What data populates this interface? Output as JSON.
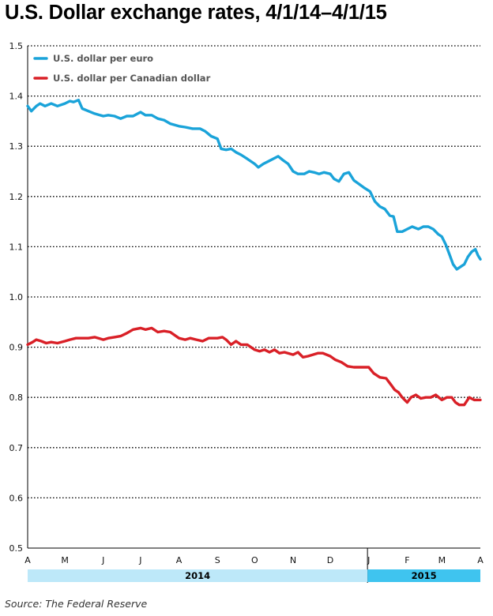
{
  "chart_data": {
    "type": "line",
    "title": "U.S. Dollar exchange rates, 4/1/14–4/1/15",
    "xlabel": "",
    "ylabel": "",
    "ylim": [
      0.5,
      1.5
    ],
    "y_ticks": [
      "0.5",
      "0.6",
      "0.7",
      "0.8",
      "0.9",
      "1.0",
      "1.1",
      "1.2",
      "1.3",
      "1.4",
      "1.5"
    ],
    "x_range": [
      "2014-04-01",
      "2015-04-01"
    ],
    "month_ticks": [
      {
        "label": "A",
        "date": "2014-04-01"
      },
      {
        "label": "M",
        "date": "2014-05-01"
      },
      {
        "label": "J",
        "date": "2014-06-01"
      },
      {
        "label": "J",
        "date": "2014-07-01"
      },
      {
        "label": "A",
        "date": "2014-08-01"
      },
      {
        "label": "S",
        "date": "2014-09-01"
      },
      {
        "label": "O",
        "date": "2014-10-01"
      },
      {
        "label": "N",
        "date": "2014-11-01"
      },
      {
        "label": "D",
        "date": "2014-12-01"
      },
      {
        "label": "J",
        "date": "2015-01-01"
      },
      {
        "label": "F",
        "date": "2015-02-01"
      },
      {
        "label": "M",
        "date": "2015-03-01"
      },
      {
        "label": "A",
        "date": "2015-04-01"
      }
    ],
    "years": [
      {
        "label": "2014",
        "start": "2014-04-01",
        "end": "2014-12-31"
      },
      {
        "label": "2015",
        "start": "2014-12-31",
        "end": "2015-04-01"
      }
    ],
    "grid": "horizontal dotted",
    "legend_position": "top-left",
    "series": [
      {
        "name": "U.S. dollar per euro",
        "color": "#1aa3d9",
        "points": [
          [
            "2014-04-01",
            1.38
          ],
          [
            "2014-04-04",
            1.37
          ],
          [
            "2014-04-08",
            1.38
          ],
          [
            "2014-04-11",
            1.385
          ],
          [
            "2014-04-15",
            1.38
          ],
          [
            "2014-04-20",
            1.385
          ],
          [
            "2014-04-25",
            1.38
          ],
          [
            "2014-05-01",
            1.385
          ],
          [
            "2014-05-05",
            1.39
          ],
          [
            "2014-05-08",
            1.388
          ],
          [
            "2014-05-12",
            1.392
          ],
          [
            "2014-05-15",
            1.375
          ],
          [
            "2014-05-20",
            1.37
          ],
          [
            "2014-05-25",
            1.365
          ],
          [
            "2014-06-01",
            1.36
          ],
          [
            "2014-06-05",
            1.362
          ],
          [
            "2014-06-10",
            1.36
          ],
          [
            "2014-06-15",
            1.355
          ],
          [
            "2014-06-20",
            1.36
          ],
          [
            "2014-06-25",
            1.36
          ],
          [
            "2014-07-01",
            1.368
          ],
          [
            "2014-07-05",
            1.362
          ],
          [
            "2014-07-10",
            1.362
          ],
          [
            "2014-07-15",
            1.355
          ],
          [
            "2014-07-20",
            1.352
          ],
          [
            "2014-07-25",
            1.345
          ],
          [
            "2014-08-01",
            1.34
          ],
          [
            "2014-08-06",
            1.338
          ],
          [
            "2014-08-12",
            1.335
          ],
          [
            "2014-08-18",
            1.335
          ],
          [
            "2014-08-22",
            1.33
          ],
          [
            "2014-08-27",
            1.32
          ],
          [
            "2014-09-01",
            1.315
          ],
          [
            "2014-09-04",
            1.295
          ],
          [
            "2014-09-08",
            1.293
          ],
          [
            "2014-09-12",
            1.295
          ],
          [
            "2014-09-16",
            1.288
          ],
          [
            "2014-09-20",
            1.283
          ],
          [
            "2014-09-25",
            1.275
          ],
          [
            "2014-10-01",
            1.265
          ],
          [
            "2014-10-04",
            1.258
          ],
          [
            "2014-10-08",
            1.265
          ],
          [
            "2014-10-12",
            1.27
          ],
          [
            "2014-10-16",
            1.275
          ],
          [
            "2014-10-20",
            1.28
          ],
          [
            "2014-10-24",
            1.272
          ],
          [
            "2014-10-28",
            1.265
          ],
          [
            "2014-11-01",
            1.25
          ],
          [
            "2014-11-05",
            1.245
          ],
          [
            "2014-11-10",
            1.245
          ],
          [
            "2014-11-14",
            1.25
          ],
          [
            "2014-11-18",
            1.248
          ],
          [
            "2014-11-22",
            1.245
          ],
          [
            "2014-11-26",
            1.248
          ],
          [
            "2014-12-01",
            1.245
          ],
          [
            "2014-12-04",
            1.235
          ],
          [
            "2014-12-08",
            1.23
          ],
          [
            "2014-12-12",
            1.245
          ],
          [
            "2014-12-16",
            1.248
          ],
          [
            "2014-12-20",
            1.232
          ],
          [
            "2014-12-24",
            1.225
          ],
          [
            "2014-12-28",
            1.218
          ],
          [
            "2015-01-02",
            1.21
          ],
          [
            "2015-01-06",
            1.19
          ],
          [
            "2015-01-10",
            1.18
          ],
          [
            "2015-01-14",
            1.175
          ],
          [
            "2015-01-18",
            1.162
          ],
          [
            "2015-01-21",
            1.16
          ],
          [
            "2015-01-24",
            1.13
          ],
          [
            "2015-01-28",
            1.13
          ],
          [
            "2015-02-01",
            1.135
          ],
          [
            "2015-02-05",
            1.14
          ],
          [
            "2015-02-10",
            1.135
          ],
          [
            "2015-02-14",
            1.14
          ],
          [
            "2015-02-18",
            1.14
          ],
          [
            "2015-02-22",
            1.135
          ],
          [
            "2015-02-26",
            1.125
          ],
          [
            "2015-03-01",
            1.12
          ],
          [
            "2015-03-04",
            1.105
          ],
          [
            "2015-03-07",
            1.085
          ],
          [
            "2015-03-10",
            1.065
          ],
          [
            "2015-03-13",
            1.055
          ],
          [
            "2015-03-16",
            1.06
          ],
          [
            "2015-03-19",
            1.065
          ],
          [
            "2015-03-22",
            1.08
          ],
          [
            "2015-03-25",
            1.09
          ],
          [
            "2015-03-28",
            1.095
          ],
          [
            "2015-03-30",
            1.083
          ],
          [
            "2015-04-01",
            1.075
          ]
        ]
      },
      {
        "name": "U.S. dollar per Canadian dollar",
        "color": "#d92027",
        "points": [
          [
            "2014-04-01",
            0.905
          ],
          [
            "2014-04-05",
            0.91
          ],
          [
            "2014-04-08",
            0.915
          ],
          [
            "2014-04-12",
            0.912
          ],
          [
            "2014-04-16",
            0.908
          ],
          [
            "2014-04-20",
            0.91
          ],
          [
            "2014-04-25",
            0.908
          ],
          [
            "2014-05-01",
            0.912
          ],
          [
            "2014-05-05",
            0.915
          ],
          [
            "2014-05-10",
            0.918
          ],
          [
            "2014-05-15",
            0.918
          ],
          [
            "2014-05-20",
            0.918
          ],
          [
            "2014-05-25",
            0.92
          ],
          [
            "2014-06-01",
            0.915
          ],
          [
            "2014-06-05",
            0.918
          ],
          [
            "2014-06-10",
            0.92
          ],
          [
            "2014-06-15",
            0.922
          ],
          [
            "2014-06-20",
            0.928
          ],
          [
            "2014-06-25",
            0.935
          ],
          [
            "2014-07-01",
            0.938
          ],
          [
            "2014-07-05",
            0.935
          ],
          [
            "2014-07-10",
            0.938
          ],
          [
            "2014-07-15",
            0.93
          ],
          [
            "2014-07-20",
            0.932
          ],
          [
            "2014-07-25",
            0.93
          ],
          [
            "2014-08-01",
            0.918
          ],
          [
            "2014-08-06",
            0.915
          ],
          [
            "2014-08-10",
            0.918
          ],
          [
            "2014-08-15",
            0.915
          ],
          [
            "2014-08-20",
            0.912
          ],
          [
            "2014-08-25",
            0.918
          ],
          [
            "2014-09-01",
            0.918
          ],
          [
            "2014-09-05",
            0.92
          ],
          [
            "2014-09-08",
            0.915
          ],
          [
            "2014-09-12",
            0.905
          ],
          [
            "2014-09-16",
            0.912
          ],
          [
            "2014-09-20",
            0.905
          ],
          [
            "2014-09-25",
            0.905
          ],
          [
            "2014-10-01",
            0.895
          ],
          [
            "2014-10-05",
            0.892
          ],
          [
            "2014-10-09",
            0.895
          ],
          [
            "2014-10-13",
            0.89
          ],
          [
            "2014-10-17",
            0.895
          ],
          [
            "2014-10-21",
            0.888
          ],
          [
            "2014-10-25",
            0.89
          ],
          [
            "2014-11-01",
            0.885
          ],
          [
            "2014-11-05",
            0.89
          ],
          [
            "2014-11-09",
            0.88
          ],
          [
            "2014-11-13",
            0.882
          ],
          [
            "2014-11-17",
            0.885
          ],
          [
            "2014-11-21",
            0.888
          ],
          [
            "2014-11-25",
            0.888
          ],
          [
            "2014-12-01",
            0.882
          ],
          [
            "2014-12-05",
            0.875
          ],
          [
            "2014-12-10",
            0.87
          ],
          [
            "2014-12-15",
            0.862
          ],
          [
            "2014-12-20",
            0.86
          ],
          [
            "2014-12-25",
            0.86
          ],
          [
            "2015-01-01",
            0.86
          ],
          [
            "2015-01-05",
            0.848
          ],
          [
            "2015-01-10",
            0.84
          ],
          [
            "2015-01-15",
            0.838
          ],
          [
            "2015-01-19",
            0.825
          ],
          [
            "2015-01-22",
            0.815
          ],
          [
            "2015-01-25",
            0.81
          ],
          [
            "2015-01-28",
            0.8
          ],
          [
            "2015-02-01",
            0.79
          ],
          [
            "2015-02-04",
            0.8
          ],
          [
            "2015-02-08",
            0.805
          ],
          [
            "2015-02-12",
            0.798
          ],
          [
            "2015-02-16",
            0.8
          ],
          [
            "2015-02-20",
            0.8
          ],
          [
            "2015-02-24",
            0.805
          ],
          [
            "2015-03-01",
            0.795
          ],
          [
            "2015-03-05",
            0.8
          ],
          [
            "2015-03-09",
            0.8
          ],
          [
            "2015-03-12",
            0.79
          ],
          [
            "2015-03-15",
            0.785
          ],
          [
            "2015-03-19",
            0.785
          ],
          [
            "2015-03-23",
            0.8
          ],
          [
            "2015-03-27",
            0.795
          ],
          [
            "2015-04-01",
            0.795
          ]
        ]
      }
    ]
  },
  "source": "Source: The Federal Reserve"
}
